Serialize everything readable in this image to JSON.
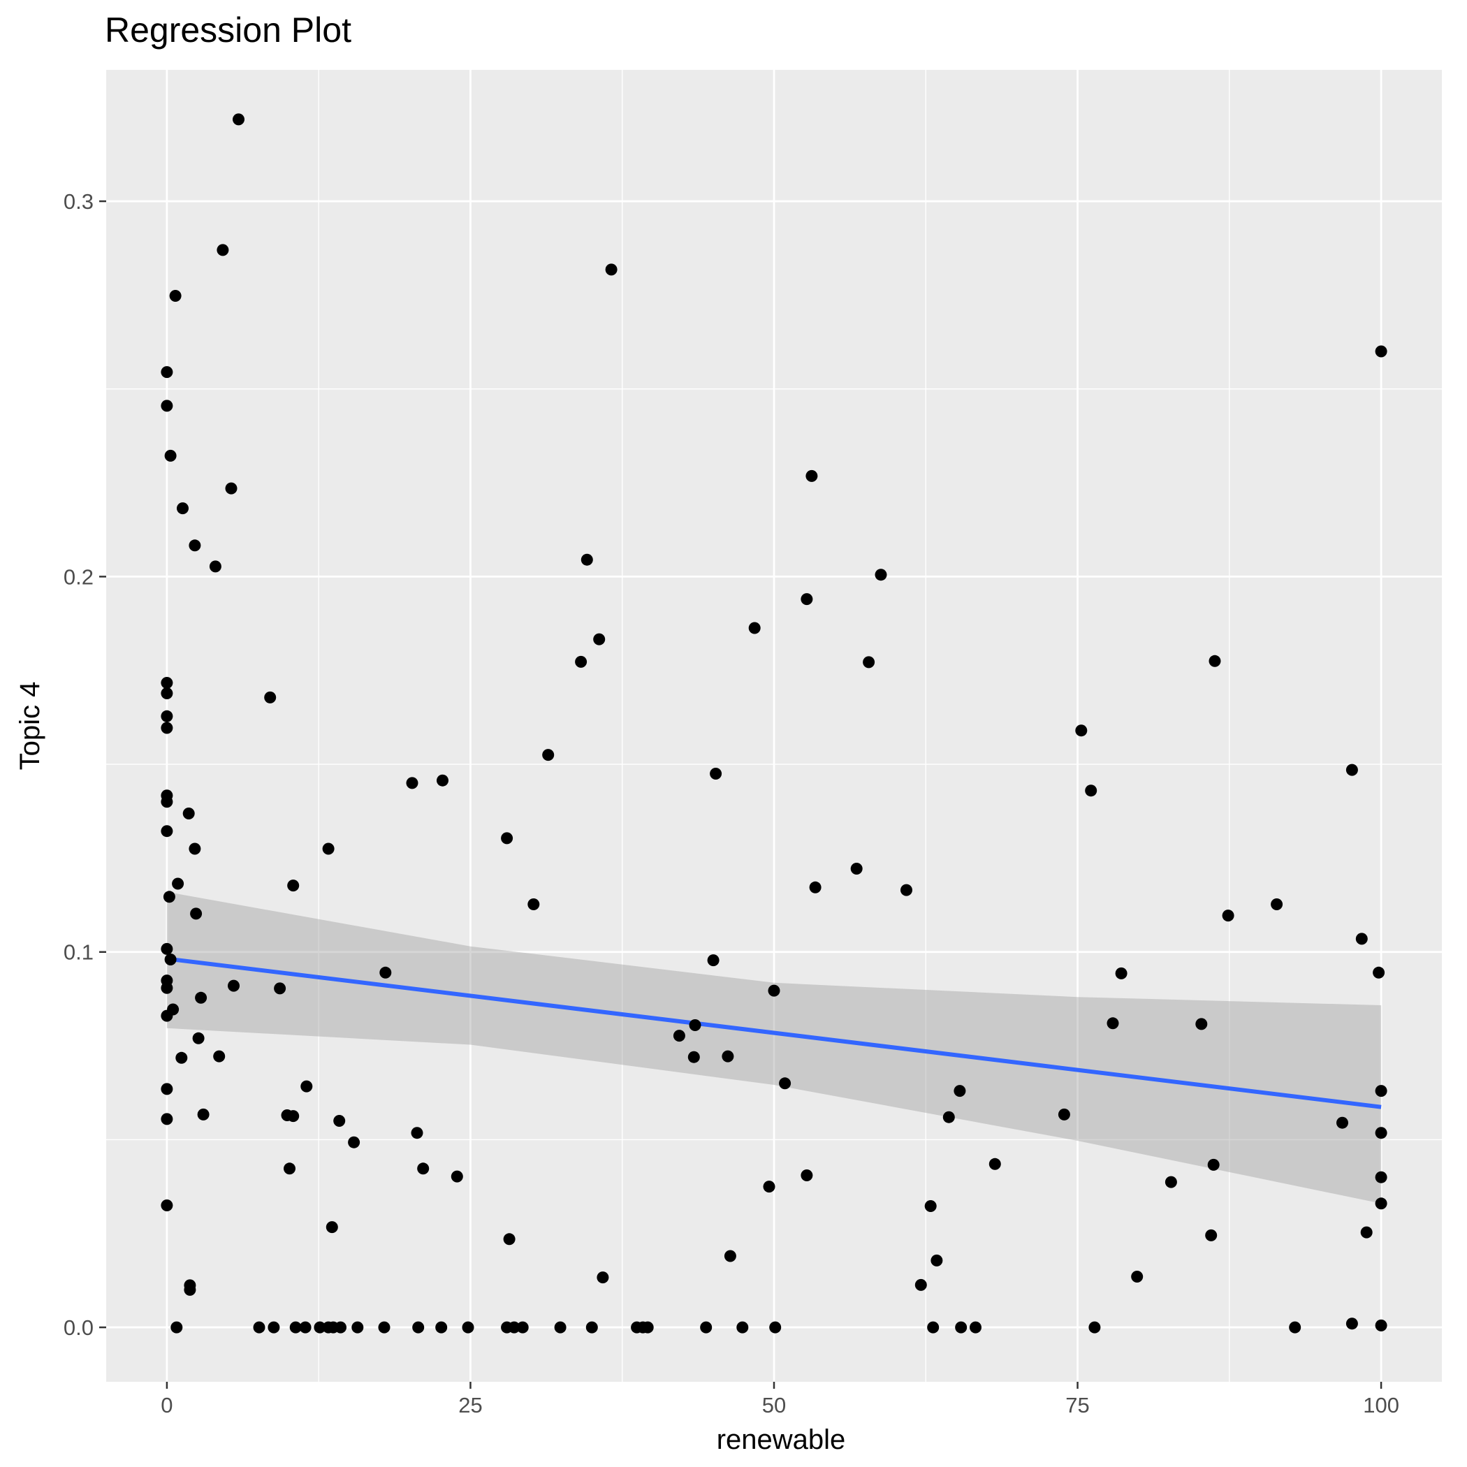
{
  "chart_data": {
    "type": "scatter",
    "title": "Regression Plot",
    "xlabel": "renewable",
    "ylabel": "Topic 4",
    "xlim": [
      -5,
      105
    ],
    "ylim": [
      -0.0145,
      0.335
    ],
    "xticks": [
      0,
      25,
      50,
      75,
      100
    ],
    "yticks": [
      0.0,
      0.1,
      0.2,
      0.3
    ],
    "grid": true,
    "legend": "none",
    "colors": {
      "panel": "#EBEBEB",
      "grid": "#FFFFFF",
      "points": "#000000",
      "fit_line": "#3366FF",
      "ribbon": "#999999",
      "tick": "#333333"
    },
    "points": [
      [
        0,
        0.2545
      ],
      [
        0,
        0.2455
      ],
      [
        0.3,
        0.2322
      ],
      [
        0.7,
        0.2748
      ],
      [
        1.3,
        0.2182
      ],
      [
        2.3,
        0.2083
      ],
      [
        4.0,
        0.2027
      ],
      [
        4.6,
        0.287
      ],
      [
        5.3,
        0.2235
      ],
      [
        5.9,
        0.3218
      ],
      [
        0,
        0.1717
      ],
      [
        0,
        0.1689
      ],
      [
        0,
        0.1628
      ],
      [
        0,
        0.1597
      ],
      [
        0,
        0.1417
      ],
      [
        0,
        0.14
      ],
      [
        0,
        0.1322
      ],
      [
        1.8,
        0.1369
      ],
      [
        2.3,
        0.1275
      ],
      [
        8.5,
        0.1678
      ],
      [
        0,
        0.1008
      ],
      [
        0.2,
        0.1147
      ],
      [
        0.9,
        0.1182
      ],
      [
        2.4,
        0.1102
      ],
      [
        0.3,
        0.098
      ],
      [
        0,
        0.0924
      ],
      [
        0,
        0.0904
      ],
      [
        0,
        0.083
      ],
      [
        0.5,
        0.0847
      ],
      [
        2.8,
        0.0878
      ],
      [
        5.5,
        0.091
      ],
      [
        9.3,
        0.0903
      ],
      [
        2.6,
        0.077
      ],
      [
        4.3,
        0.0722
      ],
      [
        1.2,
        0.0718
      ],
      [
        0,
        0.0635
      ],
      [
        0,
        0.0555
      ],
      [
        3.0,
        0.0567
      ],
      [
        0,
        0.0325
      ],
      [
        1.9,
        0.0112
      ],
      [
        1.9,
        0.01
      ],
      [
        0.8,
        0.0
      ],
      [
        10.4,
        0.1177
      ],
      [
        13.3,
        0.1275
      ],
      [
        11.5,
        0.0642
      ],
      [
        9.9,
        0.0565
      ],
      [
        10.4,
        0.0563
      ],
      [
        10.1,
        0.0423
      ],
      [
        14.2,
        0.055
      ],
      [
        15.4,
        0.0493
      ],
      [
        13.6,
        0.0267
      ],
      [
        18.0,
        0.0945
      ],
      [
        20.2,
        0.145
      ],
      [
        22.7,
        0.1457
      ],
      [
        20.6,
        0.0518
      ],
      [
        21.1,
        0.0423
      ],
      [
        23.9,
        0.0402
      ],
      [
        28.0,
        0.1303
      ],
      [
        30.2,
        0.1127
      ],
      [
        31.4,
        0.1525
      ],
      [
        28.2,
        0.0235
      ],
      [
        34.1,
        0.1773
      ],
      [
        34.6,
        0.2045
      ],
      [
        35.6,
        0.1833
      ],
      [
        36.6,
        0.2818
      ],
      [
        35.9,
        0.0133
      ],
      [
        42.2,
        0.0777
      ],
      [
        43.5,
        0.0805
      ],
      [
        43.4,
        0.072
      ],
      [
        46.2,
        0.0722
      ],
      [
        45.0,
        0.0978
      ],
      [
        45.2,
        0.1475
      ],
      [
        46.4,
        0.019
      ],
      [
        48.4,
        0.1863
      ],
      [
        49.6,
        0.0375
      ],
      [
        50.0,
        0.0897
      ],
      [
        50.9,
        0.065
      ],
      [
        52.7,
        0.194
      ],
      [
        52.7,
        0.0405
      ],
      [
        53.1,
        0.2268
      ],
      [
        53.4,
        0.1172
      ],
      [
        56.8,
        0.1222
      ],
      [
        57.8,
        0.1772
      ],
      [
        58.8,
        0.2005
      ],
      [
        60.9,
        0.1165
      ],
      [
        62.1,
        0.0113
      ],
      [
        62.9,
        0.0323
      ],
      [
        63.4,
        0.0178
      ],
      [
        64.4,
        0.056
      ],
      [
        65.3,
        0.063
      ],
      [
        68.2,
        0.0435
      ],
      [
        73.9,
        0.0567
      ],
      [
        75.3,
        0.159
      ],
      [
        76.1,
        0.143
      ],
      [
        77.9,
        0.081
      ],
      [
        78.6,
        0.0943
      ],
      [
        79.9,
        0.0135
      ],
      [
        82.7,
        0.0387
      ],
      [
        85.2,
        0.0808
      ],
      [
        86.0,
        0.0245
      ],
      [
        86.2,
        0.0433
      ],
      [
        86.3,
        0.1775
      ],
      [
        87.4,
        0.1097
      ],
      [
        91.4,
        0.1127
      ],
      [
        96.8,
        0.0545
      ],
      [
        97.6,
        0.1485
      ],
      [
        98.4,
        0.1035
      ],
      [
        98.8,
        0.0253
      ],
      [
        99.8,
        0.0945
      ],
      [
        100,
        0.26
      ],
      [
        100,
        0.063
      ],
      [
        100,
        0.0518
      ],
      [
        100,
        0.04
      ],
      [
        100,
        0.033
      ],
      [
        7.6,
        0.0
      ],
      [
        8.8,
        0.0
      ],
      [
        10.6,
        0.0
      ],
      [
        11.4,
        0.0
      ],
      [
        12.6,
        0.0
      ],
      [
        13.3,
        0.0
      ],
      [
        13.7,
        0.0
      ],
      [
        14.3,
        0.0
      ],
      [
        15.7,
        0.0
      ],
      [
        17.9,
        0.0
      ],
      [
        20.7,
        0.0
      ],
      [
        22.6,
        0.0
      ],
      [
        24.8,
        0.0
      ],
      [
        28.0,
        0.0
      ],
      [
        28.6,
        0.0
      ],
      [
        29.3,
        0.0
      ],
      [
        32.4,
        0.0
      ],
      [
        35.0,
        0.0
      ],
      [
        38.7,
        0.0
      ],
      [
        39.2,
        0.0
      ],
      [
        39.6,
        0.0
      ],
      [
        44.4,
        0.0
      ],
      [
        47.4,
        0.0
      ],
      [
        50.1,
        0.0
      ],
      [
        63.1,
        0.0
      ],
      [
        65.4,
        0.0
      ],
      [
        66.6,
        0.0
      ],
      [
        76.4,
        0.0
      ],
      [
        92.9,
        0.0
      ],
      [
        97.6,
        0.001
      ],
      [
        100,
        0.0005
      ]
    ],
    "fit_line": {
      "x": [
        0,
        100
      ],
      "y": [
        0.0982,
        0.0587
      ]
    },
    "confidence_band": {
      "x": [
        0,
        25,
        50,
        75,
        100
      ],
      "lower": [
        0.0797,
        0.0753,
        0.0646,
        0.0497,
        0.033
      ],
      "upper": [
        0.116,
        0.1015,
        0.0918,
        0.088,
        0.0858
      ]
    }
  }
}
